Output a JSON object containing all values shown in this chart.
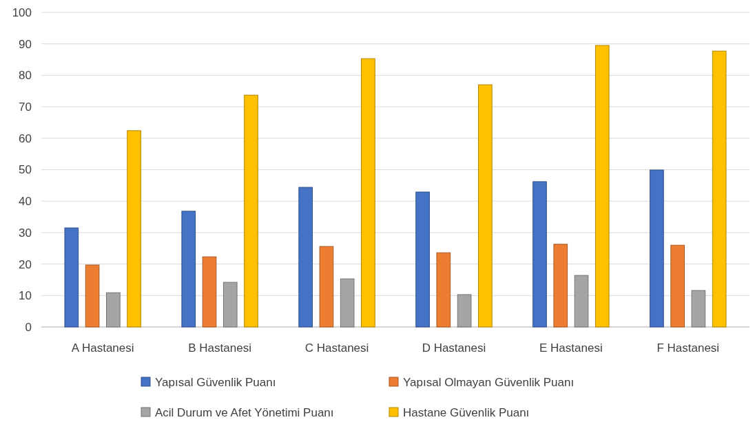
{
  "chart_data": {
    "type": "bar",
    "categories": [
      "A Hastanesi",
      "B Hastanesi",
      "C Hastanesi",
      "D Hastanesi",
      "E Hastanesi",
      "F Hastanesi"
    ],
    "series": [
      {
        "name": "Yapısal Güvenlik Puanı",
        "color": "#4472c4",
        "values": [
          31.5,
          36.8,
          44.4,
          42.9,
          46.2,
          49.9
        ]
      },
      {
        "name": "Yapısal Olmayan Güvenlik Puanı",
        "color": "#ed7d31",
        "values": [
          19.7,
          22.3,
          25.6,
          23.6,
          26.3,
          26.0
        ]
      },
      {
        "name": "Acil Durum ve Afet Yönetimi Puanı",
        "color": "#a5a5a5",
        "values": [
          10.9,
          14.2,
          15.3,
          10.3,
          16.4,
          11.6
        ]
      },
      {
        "name": "Hastane Güvenlik Puanı",
        "color": "#ffc000",
        "values": [
          62.4,
          73.7,
          85.3,
          77.0,
          89.5,
          87.7
        ]
      }
    ],
    "ylim": [
      0,
      100
    ],
    "yticks": [
      0,
      10,
      20,
      30,
      40,
      50,
      60,
      70,
      80,
      90,
      100
    ],
    "grid": "y",
    "legend": "bottom"
  }
}
